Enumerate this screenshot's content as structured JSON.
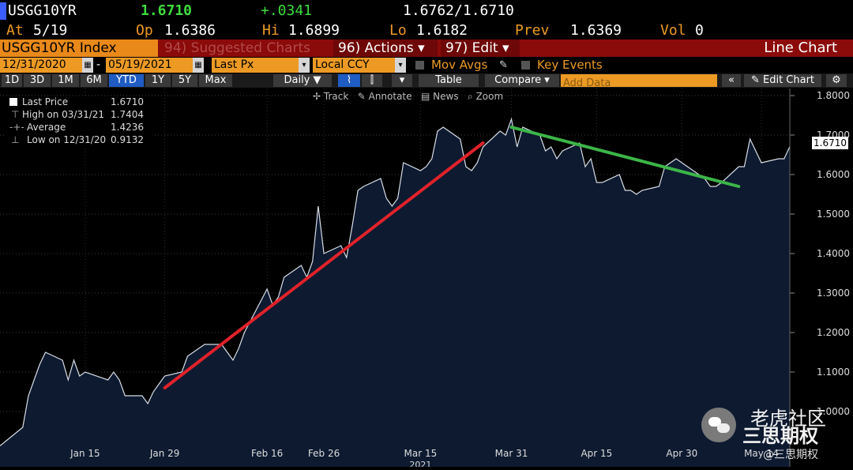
{
  "quote": {
    "ticker": "USGG10YR",
    "last": "1.6710",
    "change": "+.0341",
    "bid_ask": "1.6762/1.6710",
    "at_label": "At",
    "at_value": "5/19",
    "op_label": "Op",
    "op_value": "1.6386",
    "hi_label": "Hi",
    "hi_value": "1.6899",
    "lo_label": "Lo",
    "lo_value": "1.6182",
    "prev_label": "Prev",
    "prev_value": "1.6369",
    "vol_label": "Vol",
    "vol_value": "0"
  },
  "menu": {
    "index_name": "USGG10YR Index",
    "suggested": "94) Suggested Charts",
    "actions": "96) Actions ▾",
    "edit": "97) Edit ▾",
    "chart_type": "Line Chart"
  },
  "controls": {
    "start_date": "12/31/2020",
    "dash": "-",
    "end_date": "05/19/2021",
    "field": "Last Px",
    "currency": "Local CCY",
    "mov_avgs": "Mov Avgs",
    "key_events": "Key Events"
  },
  "periods": [
    "1D",
    "3D",
    "1M",
    "6M",
    "YTD",
    "1Y",
    "5Y",
    "Max"
  ],
  "active_period": "YTD",
  "toolbar": {
    "frequency": "Daily ▼",
    "table": "Table",
    "compare": "Compare ▾",
    "add_data_placeholder": "Add Data",
    "edit_chart": "Edit Chart"
  },
  "chart_tools": [
    "Track",
    "Annotate",
    "News",
    "Zoom"
  ],
  "legend": [
    {
      "label": "Last Price",
      "value": "1.6710"
    },
    {
      "label": "High on 03/31/21",
      "value": "1.7404"
    },
    {
      "label": "Average",
      "value": "1.4236"
    },
    {
      "label": "Low on 12/31/20",
      "value": "0.9132"
    }
  ],
  "watermark": {
    "line1": "老虎社区",
    "line2": "三思期权",
    "handle": "@三思期权"
  },
  "colors": {
    "positive": "#3ddc3d",
    "label_orange": "#ec9a24",
    "menu_red": "#8b0a0a",
    "area_fill": "#0d1a30",
    "trend_up": "#e0222a",
    "trend_down": "#3cb548"
  },
  "chart_data": {
    "type": "area",
    "series": [
      {
        "name": "Last Price",
        "x": [
          "12/31/20",
          "01/04/21",
          "01/05/21",
          "01/06/21",
          "01/07/21",
          "01/08/21",
          "01/11/21",
          "01/12/21",
          "01/13/21",
          "01/14/21",
          "01/15/21",
          "01/19/21",
          "01/20/21",
          "01/21/21",
          "01/22/21",
          "01/25/21",
          "01/26/21",
          "01/27/21",
          "01/28/21",
          "01/29/21",
          "02/01/21",
          "02/02/21",
          "02/03/21",
          "02/04/21",
          "02/05/21",
          "02/08/21",
          "02/09/21",
          "02/10/21",
          "02/11/21",
          "02/12/21",
          "02/16/21",
          "02/17/21",
          "02/18/21",
          "02/19/21",
          "02/22/21",
          "02/23/21",
          "02/24/21",
          "02/25/21",
          "02/26/21",
          "03/01/21",
          "03/02/21",
          "03/03/21",
          "03/04/21",
          "03/05/21",
          "03/08/21",
          "03/09/21",
          "03/10/21",
          "03/11/21",
          "03/12/21",
          "03/15/21",
          "03/16/21",
          "03/17/21",
          "03/18/21",
          "03/19/21",
          "03/22/21",
          "03/23/21",
          "03/24/21",
          "03/25/21",
          "03/26/21",
          "03/29/21",
          "03/30/21",
          "03/31/21",
          "04/01/21",
          "04/02/21",
          "04/05/21",
          "04/06/21",
          "04/07/21",
          "04/08/21",
          "04/09/21",
          "04/12/21",
          "04/13/21",
          "04/14/21",
          "04/15/21",
          "04/16/21",
          "04/19/21",
          "04/20/21",
          "04/21/21",
          "04/22/21",
          "04/23/21",
          "04/26/21",
          "04/27/21",
          "04/28/21",
          "04/29/21",
          "04/30/21",
          "05/03/21",
          "05/04/21",
          "05/05/21",
          "05/06/21",
          "05/07/21",
          "05/10/21",
          "05/11/21",
          "05/12/21",
          "05/13/21",
          "05/14/21",
          "05/17/21",
          "05/18/21",
          "05/19/21"
        ],
        "y": [
          0.9132,
          0.96,
          1.04,
          1.08,
          1.12,
          1.15,
          1.13,
          1.08,
          1.13,
          1.09,
          1.1,
          1.08,
          1.1,
          1.08,
          1.04,
          1.04,
          1.02,
          1.05,
          1.07,
          1.09,
          1.1,
          1.14,
          1.15,
          1.16,
          1.17,
          1.17,
          1.15,
          1.13,
          1.16,
          1.2,
          1.31,
          1.27,
          1.29,
          1.34,
          1.37,
          1.34,
          1.38,
          1.52,
          1.4,
          1.42,
          1.39,
          1.47,
          1.56,
          1.57,
          1.59,
          1.54,
          1.52,
          1.54,
          1.63,
          1.61,
          1.62,
          1.64,
          1.71,
          1.72,
          1.69,
          1.62,
          1.61,
          1.63,
          1.67,
          1.71,
          1.7,
          1.7404,
          1.67,
          1.72,
          1.7,
          1.66,
          1.67,
          1.64,
          1.66,
          1.68,
          1.62,
          1.64,
          1.58,
          1.58,
          1.6,
          1.56,
          1.56,
          1.55,
          1.56,
          1.57,
          1.62,
          1.63,
          1.64,
          1.63,
          1.6,
          1.59,
          1.57,
          1.57,
          1.58,
          1.62,
          1.62,
          1.69,
          1.66,
          1.63,
          1.64,
          1.64,
          1.671
        ]
      }
    ],
    "x_tick_labels": [
      "Jan 15",
      "Jan 29",
      "Feb 16",
      "Feb 26",
      "Mar 15",
      "Mar 31",
      "Apr 15",
      "Apr 30",
      "May 14"
    ],
    "x_tick_dates": [
      "01/15/21",
      "01/29/21",
      "02/16/21",
      "02/26/21",
      "03/15/21",
      "03/31/21",
      "04/15/21",
      "04/30/21",
      "05/14/21"
    ],
    "year_label": "2021",
    "y_ticks": [
      "1.8000",
      "1.7000",
      "1.6000",
      "1.5000",
      "1.4000",
      "1.3000",
      "1.2000",
      "1.1000",
      "1.0000"
    ],
    "ylim": [
      0.9,
      1.8
    ],
    "last_value_label": "1.6710",
    "trend_lines": [
      {
        "color": "#e0222a",
        "from": [
          "01/29/21",
          1.06
        ],
        "to": [
          "03/26/21",
          1.68
        ]
      },
      {
        "color": "#3cb548",
        "from": [
          "03/31/21",
          1.72
        ],
        "to": [
          "05/10/21",
          1.57
        ]
      }
    ],
    "grid": true,
    "legend_position": "top-left"
  }
}
